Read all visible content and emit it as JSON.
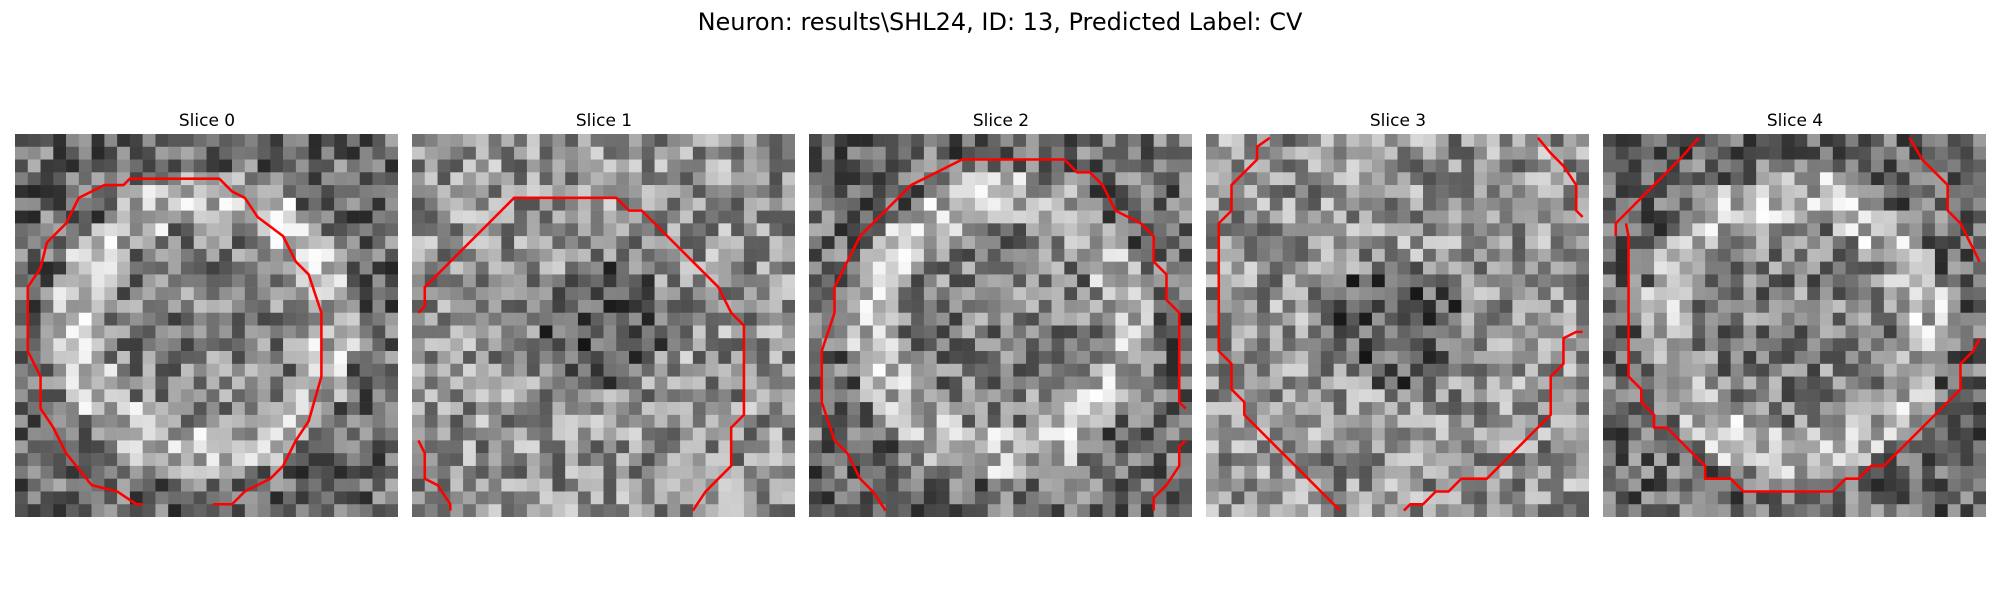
{
  "figure": {
    "title": "Neuron: results\\SHL24, ID: 13, Predicted Label: CV",
    "overlay_color": "#ff0000",
    "colormap": "grayscale",
    "panels": [
      {
        "label": "Slice 0",
        "texture_seed": 11,
        "ring": true
      },
      {
        "label": "Slice 1",
        "texture_seed": 23,
        "ring": false
      },
      {
        "label": "Slice 2",
        "texture_seed": 37,
        "ring": true
      },
      {
        "label": "Slice 3",
        "texture_seed": 41,
        "ring": false
      },
      {
        "label": "Slice 4",
        "texture_seed": 53,
        "ring": true
      }
    ]
  }
}
